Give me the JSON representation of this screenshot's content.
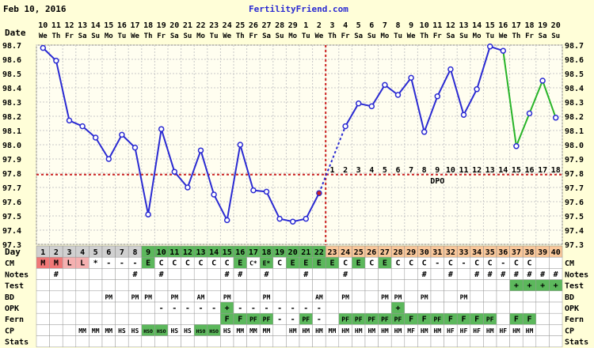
{
  "header": {
    "date": "Feb 10, 2016",
    "site": "FertilityFriend.com"
  },
  "labels": {
    "date_label": "Date",
    "day_label": "Day",
    "dpo_label": "DPO",
    "rows": [
      "CM",
      "Notes",
      "Test",
      "BD",
      "OPK",
      "Fern",
      "CP",
      "Stats"
    ]
  },
  "colors": {
    "background": "#fffed8",
    "temp_line": "#2a2ad2",
    "temp_marker": "#2a2ad2",
    "projected_line": "#28b428",
    "coverline": "#cc2222",
    "ovulation_line": "#cc2222",
    "grid": "#c8c8c8",
    "cell_green": "#5cb85c",
    "cell_red": "#f07878",
    "cell_orange": "#f9c79a",
    "cell_gray": "#d0d0d0",
    "cell_pink": "#f5b0b0"
  },
  "chart_data": {
    "type": "line",
    "title": "",
    "ylabel": "",
    "ylim": [
      97.3,
      98.7
    ],
    "yticks": [
      "98.7",
      "98.6",
      "98.5",
      "98.4",
      "98.3",
      "98.2",
      "98.1",
      "98.0",
      "97.9",
      "97.8",
      "97.7",
      "97.6",
      "97.5",
      "97.4",
      "97.3"
    ],
    "x_dates": [
      "10",
      "11",
      "12",
      "13",
      "14",
      "15",
      "16",
      "17",
      "18",
      "19",
      "20",
      "21",
      "22",
      "23",
      "24",
      "25",
      "26",
      "27",
      "28",
      "29",
      "1",
      "2",
      "3",
      "4",
      "5",
      "6",
      "7",
      "8",
      "9",
      "10",
      "11",
      "12",
      "13",
      "14",
      "15",
      "16",
      "17",
      "18",
      "19",
      "20"
    ],
    "x_weekdays": [
      "We",
      "Th",
      "Fr",
      "Sa",
      "Su",
      "Mo",
      "Tu",
      "We",
      "Th",
      "Fr",
      "Sa",
      "Su",
      "Mo",
      "Tu",
      "We",
      "Th",
      "Fr",
      "Sa",
      "Su",
      "Mo",
      "Tu",
      "We",
      "Th",
      "Fr",
      "Sa",
      "Su",
      "Mo",
      "Tu",
      "We",
      "Th",
      "Fr",
      "Sa",
      "Su",
      "Mo",
      "Tu",
      "We",
      "Th",
      "Fr",
      "Sa",
      "Su"
    ],
    "days": [
      "1",
      "2",
      "3",
      "4",
      "5",
      "6",
      "7",
      "8",
      "9",
      "10",
      "11",
      "12",
      "13",
      "14",
      "15",
      "16",
      "17",
      "18",
      "19",
      "20",
      "21",
      "22",
      "23",
      "24",
      "25",
      "26",
      "27",
      "28",
      "29",
      "30",
      "31",
      "32",
      "33",
      "34",
      "35",
      "36",
      "37",
      "38",
      "39",
      "40"
    ],
    "series": [
      {
        "values": [
          98.68,
          98.59,
          98.17,
          98.13,
          98.05,
          97.9,
          98.07,
          97.98,
          97.51,
          98.11,
          97.81,
          97.7,
          97.96,
          97.65,
          97.47,
          98.0,
          97.68,
          97.67,
          97.48,
          97.46,
          97.48,
          97.66,
          null,
          98.13,
          98.29,
          98.27,
          98.42,
          98.35,
          98.47,
          98.09,
          98.34,
          98.53,
          98.21,
          98.39,
          98.69,
          98.66,
          null,
          null,
          null,
          null
        ]
      },
      {
        "style": "projected",
        "values": [
          null,
          null,
          null,
          null,
          null,
          null,
          null,
          null,
          null,
          null,
          null,
          null,
          null,
          null,
          null,
          null,
          null,
          null,
          null,
          null,
          null,
          null,
          null,
          null,
          null,
          null,
          null,
          null,
          null,
          null,
          null,
          null,
          null,
          null,
          null,
          98.66,
          97.99,
          98.22,
          98.45,
          98.19
        ]
      }
    ],
    "coverline": 97.79,
    "ovulation_day_index": 22,
    "dpo": [
      "1",
      "2",
      "3",
      "4",
      "5",
      "6",
      "7",
      "8",
      "9",
      "10",
      "11",
      "12",
      "13",
      "14",
      "15",
      "16",
      "17",
      "18"
    ],
    "dpo_start_index": 22
  },
  "table": {
    "day_colors": [
      "g",
      "g",
      "g",
      "g",
      "g",
      "g",
      "g",
      "g",
      "G",
      "G",
      "G",
      "G",
      "G",
      "G",
      "G",
      "G",
      "G",
      "G",
      "G",
      "G",
      "G",
      "G",
      "O",
      "O",
      "O",
      "O",
      "O",
      "O",
      "O",
      "O",
      "O",
      "O",
      "O",
      "O",
      "O",
      "O",
      "O",
      "O",
      "O",
      "O"
    ],
    "CM": [
      "M",
      "M",
      "L",
      "L",
      "*",
      "-",
      "-",
      "-",
      "E",
      "C",
      "C",
      "C",
      "C",
      "C",
      "C",
      "E",
      "C*",
      "E*",
      "C",
      "E",
      "E",
      "E",
      "E",
      "C",
      "E",
      "C",
      "E",
      "C",
      "C",
      "C",
      "-",
      "C",
      "-",
      "C",
      "C",
      "-",
      "C",
      "C",
      "",
      ""
    ],
    "CM_colors": [
      "r",
      "r",
      "p",
      "p",
      "",
      "",
      "",
      "",
      "G",
      "",
      "",
      "",
      "",
      "",
      "",
      "G",
      "",
      "G",
      "",
      "G",
      "G",
      "G",
      "G",
      "",
      "G",
      "",
      "G",
      "",
      "",
      "",
      "",
      "",
      "",
      "",
      "",
      "",
      "",
      "",
      "",
      ""
    ],
    "Notes": [
      "",
      "#",
      "",
      "",
      "",
      "",
      "",
      "#",
      "",
      "#",
      "",
      "",
      "",
      "",
      "#",
      "#",
      "",
      "#",
      "",
      "",
      "#",
      "",
      "",
      "#",
      "",
      "",
      "",
      "",
      "",
      "#",
      "",
      "#",
      "",
      "#",
      "#",
      "#",
      "#",
      "#",
      "#",
      "#"
    ],
    "Test": [
      "",
      "",
      "",
      "",
      "",
      "",
      "",
      "",
      "",
      "",
      "",
      "",
      "",
      "",
      "",
      "",
      "",
      "",
      "",
      "",
      "",
      "",
      "",
      "",
      "",
      "",
      "",
      "",
      "",
      "",
      "",
      "",
      "",
      "",
      "",
      "",
      "+",
      "+",
      "+",
      "+"
    ],
    "Test_colors": [
      "",
      "",
      "",
      "",
      "",
      "",
      "",
      "",
      "",
      "",
      "",
      "",
      "",
      "",
      "",
      "",
      "",
      "",
      "",
      "",
      "",
      "",
      "",
      "",
      "",
      "",
      "",
      "",
      "",
      "",
      "",
      "",
      "",
      "",
      "",
      "",
      "G",
      "G",
      "G",
      "G"
    ],
    "BD": [
      "",
      "",
      "",
      "",
      "",
      "PM",
      "",
      "PM",
      "PM",
      "",
      "PM",
      "",
      "AM",
      "",
      "PM",
      "",
      "",
      "PM",
      "",
      "",
      "",
      "AM",
      "",
      "PM",
      "",
      "",
      "PM",
      "PM",
      "",
      "PM",
      "",
      "",
      "PM",
      "",
      "",
      "",
      "",
      "",
      "",
      ""
    ],
    "OPK": [
      "",
      "",
      "",
      "",
      "",
      "",
      "",
      "",
      "",
      "-",
      "-",
      "-",
      "-",
      "-",
      "+",
      "-",
      "-",
      "-",
      "-",
      "-",
      "-",
      "-",
      "",
      "",
      "",
      "",
      "",
      "+",
      "",
      "",
      "",
      "",
      "",
      "",
      "",
      "",
      "",
      "",
      "",
      ""
    ],
    "OPK_colors": [
      "",
      "",
      "",
      "",
      "",
      "",
      "",
      "",
      "",
      "",
      "",
      "",
      "",
      "",
      "G",
      "",
      "",
      "",
      "",
      "",
      "",
      "",
      "",
      "",
      "",
      "",
      "",
      "G",
      "",
      "",
      "",
      "",
      "",
      "",
      "",
      "",
      "",
      "",
      "",
      ""
    ],
    "Fern": [
      "",
      "",
      "",
      "",
      "",
      "",
      "",
      "",
      "",
      "",
      "",
      "",
      "",
      "",
      "F",
      "F",
      "PF",
      "PF",
      "-",
      "-",
      "PF",
      "-",
      "",
      "PF",
      "PF",
      "PF",
      "PF",
      "PF",
      "F",
      "F",
      "PF",
      "F",
      "F",
      "F",
      "PF",
      "",
      "F",
      "F",
      "",
      ""
    ],
    "Fern_colors": [
      "",
      "",
      "",
      "",
      "",
      "",
      "",
      "",
      "",
      "",
      "",
      "",
      "",
      "",
      "G",
      "G",
      "G",
      "G",
      "",
      "",
      "G",
      "",
      "",
      "G",
      "G",
      "G",
      "G",
      "G",
      "G",
      "G",
      "G",
      "G",
      "G",
      "G",
      "G",
      "",
      "G",
      "G",
      "",
      ""
    ],
    "CP": [
      "",
      "",
      "",
      "MM",
      "MM",
      "MM",
      "HS",
      "HS",
      "HSO",
      "HSO",
      "HS",
      "HS",
      "HSO",
      "HSO",
      "HS",
      "MM",
      "MM",
      "MM",
      "",
      "HM",
      "HM",
      "HM",
      "MM",
      "HM",
      "HM",
      "HM",
      "HM",
      "HM",
      "MF",
      "HM",
      "HM",
      "HF",
      "HF",
      "HF",
      "HM",
      "HF",
      "HM",
      "HM",
      "",
      ""
    ],
    "CP_colors": [
      "",
      "",
      "",
      "",
      "",
      "",
      "",
      "",
      "G",
      "G",
      "",
      "",
      "G",
      "G",
      "",
      "",
      "",
      "",
      "",
      "",
      "",
      "",
      "",
      "",
      "",
      "",
      "",
      "",
      "",
      "",
      "",
      "",
      "",
      "",
      "",
      "",
      "",
      "",
      "",
      ""
    ]
  }
}
